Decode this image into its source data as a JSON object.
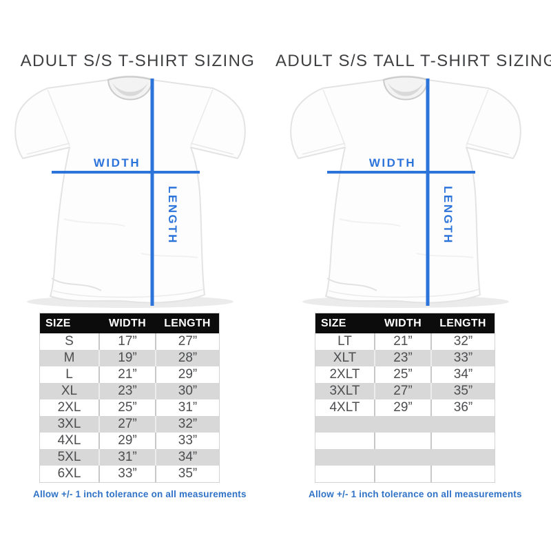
{
  "colors": {
    "accent_blue": "#2c74da",
    "footnote_blue": "#2f72c6",
    "title_gray": "#3e3f41",
    "table_header_bg": "#0c0c0c",
    "table_header_text": "#ffffff",
    "row_alt_gray": "#d8d8d8",
    "cell_text": "#4c4d4f"
  },
  "panels": [
    {
      "title": "ADULT S/S T-SHIRT SIZING",
      "diagram": {
        "width_label": "WIDTH",
        "length_label": "LENGTH"
      },
      "table": {
        "headers": [
          "SIZE",
          "WIDTH",
          "LENGTH"
        ],
        "rows": [
          [
            "S",
            "17”",
            "27”"
          ],
          [
            "M",
            "19”",
            "28”"
          ],
          [
            "L",
            "21”",
            "29”"
          ],
          [
            "XL",
            "23”",
            "30”"
          ],
          [
            "2XL",
            "25”",
            "31”"
          ],
          [
            "3XL",
            "27”",
            "32”"
          ],
          [
            "4XL",
            "29”",
            "33”"
          ],
          [
            "5XL",
            "31”",
            "34”"
          ],
          [
            "6XL",
            "33”",
            "35”"
          ]
        ]
      },
      "footnote": "Allow +/- 1 inch tolerance on all measurements"
    },
    {
      "title": "ADULT S/S TALL T-SHIRT SIZING",
      "diagram": {
        "width_label": "WIDTH",
        "length_label": "LENGTH"
      },
      "table": {
        "headers": [
          "SIZE",
          "WIDTH",
          "LENGTH"
        ],
        "rows": [
          [
            "LT",
            "21”",
            "32”"
          ],
          [
            "XLT",
            "23”",
            "33”"
          ],
          [
            "2XLT",
            "25”",
            "34”"
          ],
          [
            "3XLT",
            "27”",
            "35”"
          ],
          [
            "4XLT",
            "29”",
            "36”"
          ],
          [
            "",
            "",
            ""
          ],
          [
            "",
            "",
            ""
          ],
          [
            "",
            "",
            ""
          ],
          [
            "",
            "",
            ""
          ]
        ]
      },
      "footnote": "Allow +/- 1 inch tolerance on all measurements"
    }
  ]
}
